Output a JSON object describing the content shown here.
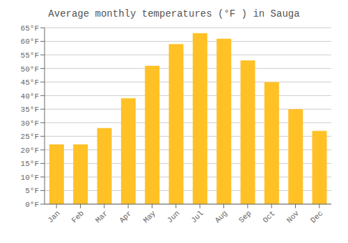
{
  "chart_data": {
    "type": "bar",
    "title": "Average monthly temperatures (°F ) in Sauga",
    "categories": [
      "Jan",
      "Feb",
      "Mar",
      "Apr",
      "May",
      "Jun",
      "Jul",
      "Aug",
      "Sep",
      "Oct",
      "Nov",
      "Dec"
    ],
    "values": [
      22,
      22,
      28,
      39,
      51,
      59,
      63,
      61,
      53,
      45,
      35,
      27
    ],
    "color": "#FFC125",
    "ylim": [
      0,
      65
    ],
    "yticks": [
      {
        "value": 0,
        "label": "0°F"
      },
      {
        "value": 5,
        "label": "5°F"
      },
      {
        "value": 10,
        "label": "10°F"
      },
      {
        "value": 15,
        "label": "15°F"
      },
      {
        "value": 20,
        "label": "20°F"
      },
      {
        "value": 25,
        "label": "25°F"
      },
      {
        "value": 30,
        "label": "30°F"
      },
      {
        "value": 35,
        "label": "35°F"
      },
      {
        "value": 40,
        "label": "40°F"
      },
      {
        "value": 45,
        "label": "45°F"
      },
      {
        "value": 50,
        "label": "50°F"
      },
      {
        "value": 55,
        "label": "55°F"
      },
      {
        "value": 60,
        "label": "60°F"
      },
      {
        "value": 65,
        "label": "65°F"
      }
    ],
    "grid": true
  }
}
